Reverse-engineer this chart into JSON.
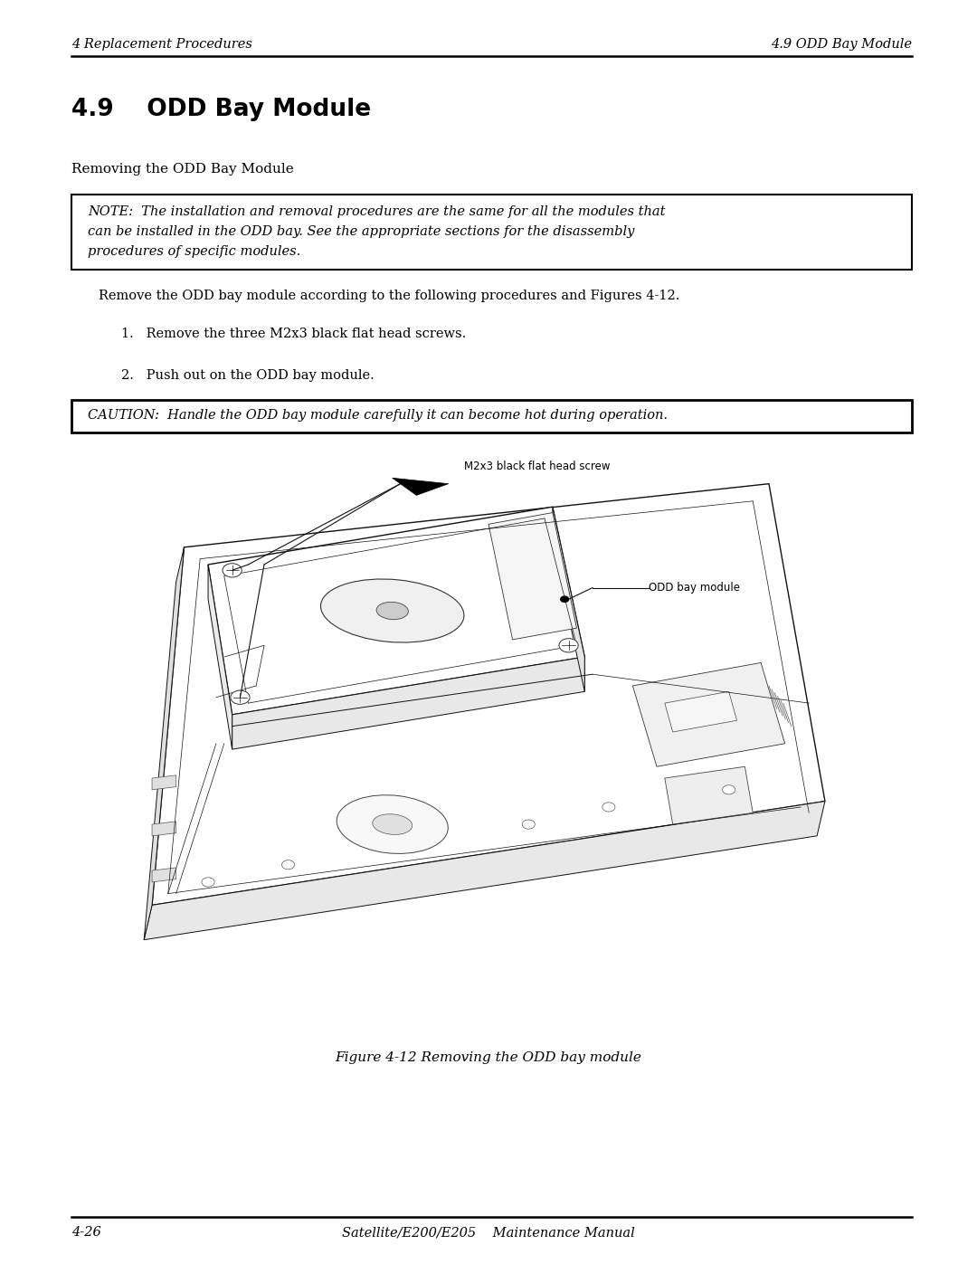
{
  "page_width": 10.8,
  "page_height": 13.97,
  "bg_color": "#ffffff",
  "header_left": "4 Replacement Procedures",
  "header_right": "4.9 ODD Bay Module",
  "footer_left": "4-26",
  "footer_center": "Satellite/E200/E205    Maintenance Manual",
  "section_title": "4.9    ODD Bay Module",
  "subsection_title": "Removing the ODD Bay Module",
  "note_line1": "NOTE:  The installation and removal procedures are the same for all the modules that",
  "note_line2": "can be installed in the ODD bay. See the appropriate sections for the disassembly",
  "note_line3": "procedures of specific modules.",
  "intro_text": "Remove the ODD bay module according to the following procedures and Figures 4-12.",
  "step1": "1.   Remove the three M2x3 black flat head screws.",
  "step2": "2.   Push out on the ODD bay module.",
  "caution_text": "CAUTION:  Handle the ODD bay module carefully it can become hot during operation.",
  "label1": "M2x3 black flat head screw",
  "label2": "ODD bay module",
  "figure_caption": "Figure 4-12 Removing the ODD bay module",
  "font_color": "#000000",
  "header_font_size": 10.5,
  "section_title_font_size": 19,
  "subsection_font_size": 11,
  "body_font_size": 10.5,
  "note_font_size": 10.5,
  "caution_font_size": 10.5,
  "caption_font_size": 11
}
